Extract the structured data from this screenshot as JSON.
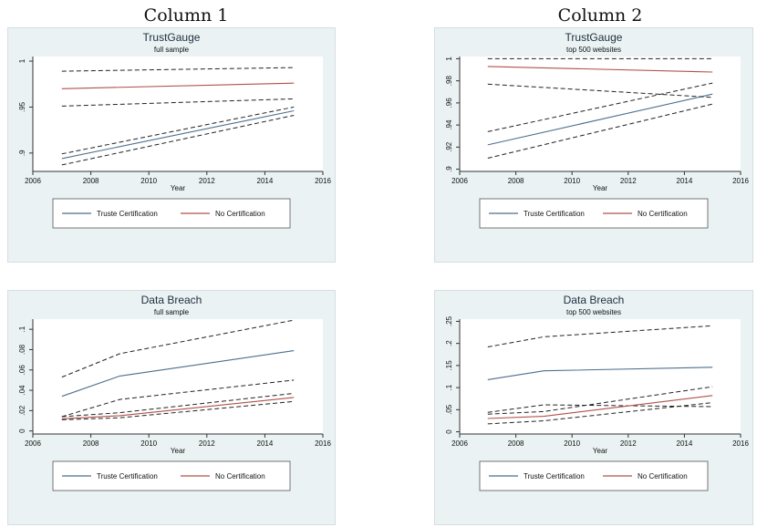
{
  "column_titles": [
    "Column 1",
    "Column 2"
  ],
  "chart_data": [
    {
      "type": "line",
      "title": "TrustGauge",
      "subtitle": "full sample",
      "xlabel": "Year",
      "ylabel": "",
      "xlim": [
        2006,
        2016
      ],
      "ylim": [
        0.88,
        1.005
      ],
      "xticks": [
        2006,
        2008,
        2010,
        2012,
        2014,
        2016
      ],
      "yticks": [
        0.9,
        0.95,
        1
      ],
      "ytick_labels": [
        ".9",
        ".95",
        "1"
      ],
      "legend": [
        "Truste Certification",
        "No Certification"
      ],
      "legend_position": "bottom",
      "series": [
        {
          "name": "Truste Certification",
          "style": "solid",
          "color": "#4e6e8e",
          "x": [
            2007,
            2015
          ],
          "y": [
            0.894,
            0.946
          ]
        },
        {
          "style": "dashed",
          "color": "#222222",
          "x": [
            2007,
            2015
          ],
          "y": [
            0.899,
            0.95
          ]
        },
        {
          "style": "dashed",
          "color": "#222222",
          "x": [
            2007,
            2015
          ],
          "y": [
            0.887,
            0.941
          ]
        },
        {
          "name": "No Certification",
          "style": "solid",
          "color": "#b0504a",
          "x": [
            2007,
            2015
          ],
          "y": [
            0.97,
            0.976
          ]
        },
        {
          "style": "dashed",
          "color": "#222222",
          "x": [
            2007,
            2015
          ],
          "y": [
            0.989,
            0.993
          ]
        },
        {
          "style": "dashed",
          "color": "#222222",
          "x": [
            2007,
            2015
          ],
          "y": [
            0.951,
            0.959
          ]
        }
      ]
    },
    {
      "type": "line",
      "title": "TrustGauge",
      "subtitle": "top 500 websites",
      "xlabel": "Year",
      "ylabel": "",
      "xlim": [
        2006,
        2016
      ],
      "ylim": [
        0.898,
        1.002
      ],
      "xticks": [
        2006,
        2008,
        2010,
        2012,
        2014,
        2016
      ],
      "yticks": [
        0.9,
        0.92,
        0.94,
        0.96,
        0.98,
        1
      ],
      "ytick_labels": [
        ".9",
        ".92",
        ".94",
        ".96",
        ".98",
        "1"
      ],
      "legend": [
        "Truste Certification",
        "No Certification"
      ],
      "legend_position": "bottom",
      "series": [
        {
          "name": "Truste Certification",
          "style": "solid",
          "color": "#4e6e8e",
          "x": [
            2007,
            2015
          ],
          "y": [
            0.922,
            0.968
          ]
        },
        {
          "style": "dashed",
          "color": "#222222",
          "x": [
            2007,
            2015
          ],
          "y": [
            0.934,
            0.978
          ]
        },
        {
          "style": "dashed",
          "color": "#222222",
          "x": [
            2007,
            2015
          ],
          "y": [
            0.91,
            0.959
          ]
        },
        {
          "name": "No Certification",
          "style": "solid",
          "color": "#b0504a",
          "x": [
            2007,
            2015
          ],
          "y": [
            0.993,
            0.988
          ]
        },
        {
          "style": "dashed",
          "color": "#222222",
          "x": [
            2007,
            2015
          ],
          "y": [
            1.0,
            1.0
          ]
        },
        {
          "style": "dashed",
          "color": "#222222",
          "x": [
            2007,
            2015
          ],
          "y": [
            0.977,
            0.965
          ]
        }
      ]
    },
    {
      "type": "line",
      "title": "Data Breach",
      "subtitle": "full sample",
      "xlabel": "Year",
      "ylabel": "",
      "xlim": [
        2006,
        2016
      ],
      "ylim": [
        -0.003,
        0.11
      ],
      "xticks": [
        2006,
        2008,
        2010,
        2012,
        2014,
        2016
      ],
      "yticks": [
        0,
        0.02,
        0.04,
        0.06,
        0.08,
        0.1
      ],
      "ytick_labels": [
        "0",
        ".02",
        ".04",
        ".06",
        ".08",
        ".1"
      ],
      "legend": [
        "Truste Certification",
        "No Certification"
      ],
      "legend_position": "bottom",
      "series": [
        {
          "name": "Truste Certification",
          "style": "solid",
          "color": "#4e6e8e",
          "x": [
            2007,
            2009,
            2015
          ],
          "y": [
            0.034,
            0.054,
            0.079
          ]
        },
        {
          "style": "dashed",
          "color": "#222222",
          "x": [
            2007,
            2009,
            2015
          ],
          "y": [
            0.053,
            0.076,
            0.109
          ]
        },
        {
          "style": "dashed",
          "color": "#222222",
          "x": [
            2007,
            2009,
            2015
          ],
          "y": [
            0.014,
            0.031,
            0.05
          ]
        },
        {
          "name": "No Certification",
          "style": "solid",
          "color": "#b0504a",
          "x": [
            2007,
            2009,
            2015
          ],
          "y": [
            0.012,
            0.015,
            0.033
          ]
        },
        {
          "style": "dashed",
          "color": "#222222",
          "x": [
            2007,
            2009,
            2015
          ],
          "y": [
            0.014,
            0.018,
            0.037
          ]
        },
        {
          "style": "dashed",
          "color": "#222222",
          "x": [
            2007,
            2009,
            2015
          ],
          "y": [
            0.011,
            0.013,
            0.029
          ]
        }
      ]
    },
    {
      "type": "line",
      "title": "Data Breach",
      "subtitle": "top 500 websites",
      "xlabel": "Year",
      "ylabel": "",
      "xlim": [
        2006,
        2016
      ],
      "ylim": [
        -0.005,
        0.255
      ],
      "xticks": [
        2006,
        2008,
        2010,
        2012,
        2014,
        2016
      ],
      "yticks": [
        0,
        0.05,
        0.1,
        0.15,
        0.2,
        0.25
      ],
      "ytick_labels": [
        "0",
        ".05",
        ".1",
        ".15",
        ".2",
        ".25"
      ],
      "legend": [
        "Truste Certification",
        "No Certification"
      ],
      "legend_position": "bottom",
      "series": [
        {
          "name": "Truste Certification",
          "style": "solid",
          "color": "#4e6e8e",
          "x": [
            2007,
            2009,
            2015
          ],
          "y": [
            0.118,
            0.138,
            0.146
          ]
        },
        {
          "style": "dashed",
          "color": "#222222",
          "x": [
            2007,
            2009,
            2015
          ],
          "y": [
            0.192,
            0.215,
            0.24
          ]
        },
        {
          "style": "dashed",
          "color": "#222222",
          "x": [
            2007,
            2009,
            2015
          ],
          "y": [
            0.044,
            0.061,
            0.057
          ]
        },
        {
          "name": "No Certification",
          "style": "solid",
          "color": "#b0504a",
          "x": [
            2007,
            2009,
            2015
          ],
          "y": [
            0.03,
            0.035,
            0.082
          ]
        },
        {
          "style": "dashed",
          "color": "#222222",
          "x": [
            2007,
            2009,
            2015
          ],
          "y": [
            0.04,
            0.046,
            0.102
          ]
        },
        {
          "style": "dashed",
          "color": "#222222",
          "x": [
            2007,
            2009,
            2015
          ],
          "y": [
            0.018,
            0.025,
            0.066
          ]
        }
      ]
    }
  ]
}
